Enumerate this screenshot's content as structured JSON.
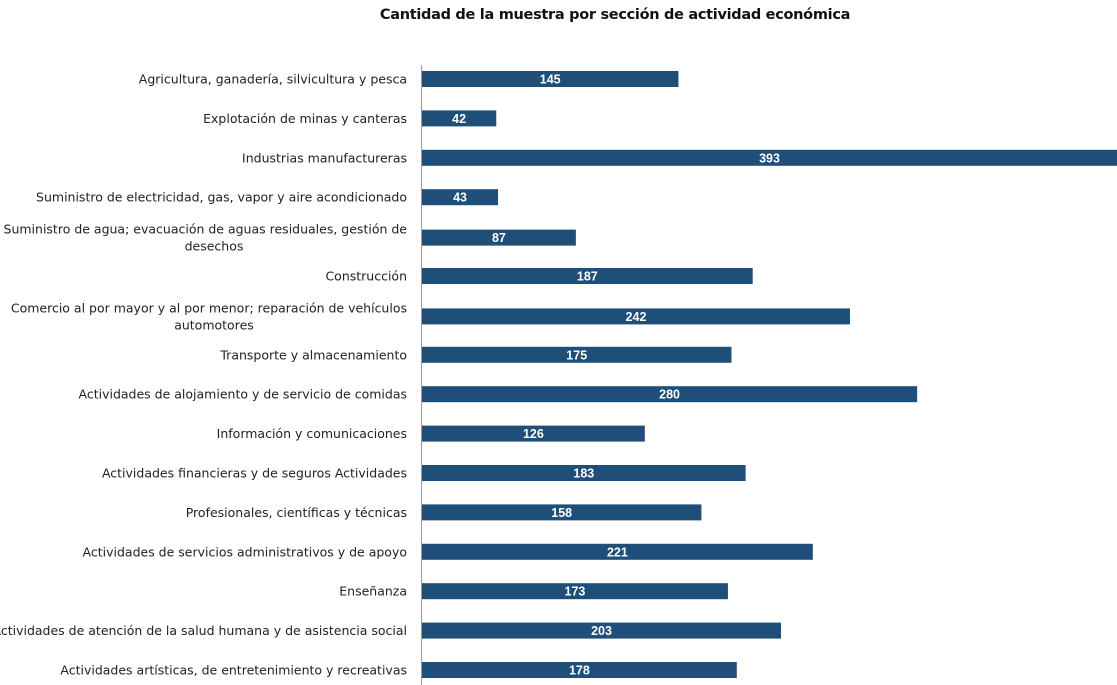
{
  "chart_data": {
    "type": "bar",
    "orientation": "horizontal",
    "title": "Cantidad de la muestra por sección de actividad económica",
    "xlabel": "",
    "ylabel": "",
    "grid": false,
    "bar_color": "#1f4e79",
    "categories": [
      [
        "Agricultura, ganadería, silvicultura y pesca"
      ],
      [
        "Explotación de minas y canteras"
      ],
      [
        "Industrias manufactureras"
      ],
      [
        "Suministro de electricidad, gas, vapor y aire acondicionado"
      ],
      [
        "Suministro de agua; evacuación de aguas residuales, gestión de",
        "desechos"
      ],
      [
        "Construcción"
      ],
      [
        "Comercio al por mayor y al por menor; reparación de vehículos",
        "automotores"
      ],
      [
        "Transporte y almacenamiento"
      ],
      [
        "Actividades de alojamiento y de servicio de comidas"
      ],
      [
        "Información y comunicaciones"
      ],
      [
        "Actividades financieras y de seguros Actividades"
      ],
      [
        "Profesionales, científicas y técnicas"
      ],
      [
        "Actividades de servicios administrativos y de apoyo"
      ],
      [
        "Enseñanza"
      ],
      [
        "Actividades de atención de la salud humana y de asistencia social"
      ],
      [
        "Actividades artísticas, de entretenimiento y recreativas"
      ]
    ],
    "values": [
      145,
      42,
      393,
      43,
      87,
      187,
      242,
      175,
      280,
      126,
      183,
      158,
      221,
      173,
      203,
      178
    ]
  }
}
